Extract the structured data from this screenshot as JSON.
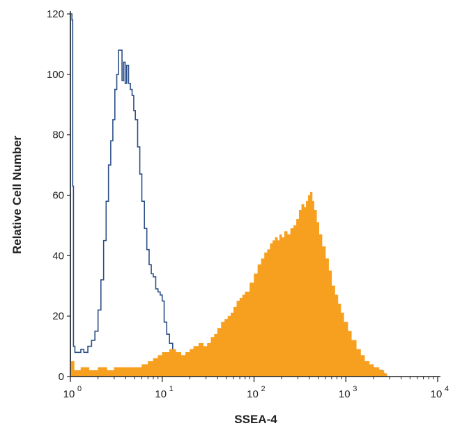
{
  "chart_data": {
    "type": "area",
    "title": "",
    "xlabel": "SSEA-4",
    "ylabel": "Relative Cell Number",
    "x_scale": "log",
    "xlim": [
      1,
      10000
    ],
    "ylim": [
      0,
      120
    ],
    "x_ticks": [
      {
        "value": 1,
        "base": "10",
        "exp": "0"
      },
      {
        "value": 10,
        "base": "10",
        "exp": "1"
      },
      {
        "value": 100,
        "base": "10",
        "exp": "2"
      },
      {
        "value": 1000,
        "base": "10",
        "exp": "3"
      },
      {
        "value": 10000,
        "base": "10",
        "exp": "4"
      }
    ],
    "y_ticks": [
      "0",
      "20",
      "40",
      "60",
      "80",
      "100",
      "120"
    ],
    "grid": false,
    "legend": "none",
    "series": [
      {
        "kind": "outline",
        "color": "#2b4f86",
        "points": [
          [
            1.0,
            0
          ],
          [
            1.0,
            120
          ],
          [
            1.04,
            118
          ],
          [
            1.06,
            63
          ],
          [
            1.08,
            10
          ],
          [
            1.12,
            8
          ],
          [
            1.2,
            8
          ],
          [
            1.3,
            9
          ],
          [
            1.4,
            8
          ],
          [
            1.55,
            10
          ],
          [
            1.7,
            12
          ],
          [
            1.85,
            15
          ],
          [
            2.0,
            22
          ],
          [
            2.15,
            32
          ],
          [
            2.3,
            45
          ],
          [
            2.45,
            58
          ],
          [
            2.6,
            70
          ],
          [
            2.75,
            78
          ],
          [
            2.9,
            85
          ],
          [
            3.05,
            95
          ],
          [
            3.2,
            100
          ],
          [
            3.35,
            108
          ],
          [
            3.5,
            108
          ],
          [
            3.65,
            98
          ],
          [
            3.8,
            104
          ],
          [
            3.95,
            97
          ],
          [
            4.1,
            103
          ],
          [
            4.3,
            97
          ],
          [
            4.5,
            95
          ],
          [
            4.7,
            93
          ],
          [
            4.9,
            88
          ],
          [
            5.1,
            85
          ],
          [
            5.4,
            76
          ],
          [
            5.7,
            67
          ],
          [
            6.0,
            58
          ],
          [
            6.4,
            49
          ],
          [
            6.8,
            42
          ],
          [
            7.2,
            37
          ],
          [
            7.6,
            34
          ],
          [
            8.0,
            33
          ],
          [
            8.5,
            29
          ],
          [
            9.0,
            28
          ],
          [
            9.5,
            27
          ],
          [
            10.0,
            25
          ],
          [
            10.5,
            18
          ],
          [
            11.2,
            14
          ],
          [
            12.0,
            11
          ],
          [
            13.0,
            8
          ],
          [
            14.0,
            6
          ],
          [
            15.5,
            5
          ],
          [
            17.0,
            6
          ],
          [
            19.0,
            5
          ],
          [
            21.0,
            4
          ],
          [
            24.0,
            4
          ],
          [
            28.0,
            3
          ],
          [
            33.0,
            2
          ],
          [
            40.0,
            2
          ],
          [
            50.0,
            2
          ],
          [
            70.0,
            2
          ],
          [
            100.0,
            1
          ],
          [
            150.0,
            1
          ],
          [
            200.0,
            2
          ],
          [
            300.0,
            2
          ],
          [
            400.0,
            3
          ],
          [
            500.0,
            2
          ],
          [
            700.0,
            3
          ],
          [
            1000.0,
            2
          ],
          [
            1300.0,
            2
          ],
          [
            1700.0,
            3
          ],
          [
            2000.0,
            2
          ],
          [
            2500.0,
            1
          ],
          [
            2600.0,
            0
          ]
        ]
      },
      {
        "kind": "filled",
        "color": "#f7a020",
        "points": [
          [
            1.0,
            0
          ],
          [
            1.0,
            5
          ],
          [
            1.1,
            2
          ],
          [
            1.3,
            3
          ],
          [
            1.6,
            2
          ],
          [
            2.0,
            3
          ],
          [
            2.5,
            2
          ],
          [
            3.0,
            3
          ],
          [
            4.0,
            3
          ],
          [
            5.0,
            3
          ],
          [
            6.0,
            4
          ],
          [
            7.0,
            5
          ],
          [
            8.0,
            6
          ],
          [
            9.0,
            7
          ],
          [
            10.0,
            8
          ],
          [
            12.0,
            9
          ],
          [
            14.0,
            8
          ],
          [
            16.0,
            7
          ],
          [
            18.0,
            8
          ],
          [
            20.0,
            9
          ],
          [
            22.0,
            10
          ],
          [
            25.0,
            11
          ],
          [
            28.0,
            10
          ],
          [
            31.0,
            11
          ],
          [
            34.0,
            13
          ],
          [
            37.0,
            14
          ],
          [
            40.0,
            16
          ],
          [
            44.0,
            18
          ],
          [
            48.0,
            19
          ],
          [
            52.0,
            20
          ],
          [
            56.0,
            21
          ],
          [
            60.0,
            23
          ],
          [
            65.0,
            25
          ],
          [
            70.0,
            26
          ],
          [
            75.0,
            27
          ],
          [
            80.0,
            28
          ],
          [
            90.0,
            31
          ],
          [
            100.0,
            34
          ],
          [
            110.0,
            37
          ],
          [
            120.0,
            39
          ],
          [
            130.0,
            41
          ],
          [
            140.0,
            42
          ],
          [
            150.0,
            44
          ],
          [
            160.0,
            45
          ],
          [
            170.0,
            46
          ],
          [
            180.0,
            45
          ],
          [
            190.0,
            47
          ],
          [
            200.0,
            46
          ],
          [
            215.0,
            48
          ],
          [
            230.0,
            47
          ],
          [
            250.0,
            49
          ],
          [
            270.0,
            50
          ],
          [
            290.0,
            52
          ],
          [
            310.0,
            55
          ],
          [
            330.0,
            57
          ],
          [
            350.0,
            56
          ],
          [
            370.0,
            58
          ],
          [
            390.0,
            60
          ],
          [
            410.0,
            61
          ],
          [
            430.0,
            58
          ],
          [
            450.0,
            55
          ],
          [
            480.0,
            51
          ],
          [
            510.0,
            47
          ],
          [
            550.0,
            43
          ],
          [
            600.0,
            39
          ],
          [
            650.0,
            35
          ],
          [
            700.0,
            30
          ],
          [
            760.0,
            27
          ],
          [
            820.0,
            24
          ],
          [
            880.0,
            21
          ],
          [
            950.0,
            18
          ],
          [
            1050.0,
            15
          ],
          [
            1150.0,
            12
          ],
          [
            1300.0,
            9
          ],
          [
            1450.0,
            7
          ],
          [
            1600.0,
            5
          ],
          [
            1800.0,
            4
          ],
          [
            2000.0,
            3
          ],
          [
            2300.0,
            2
          ],
          [
            2600.0,
            1
          ],
          [
            2800.0,
            0
          ]
        ]
      }
    ]
  }
}
